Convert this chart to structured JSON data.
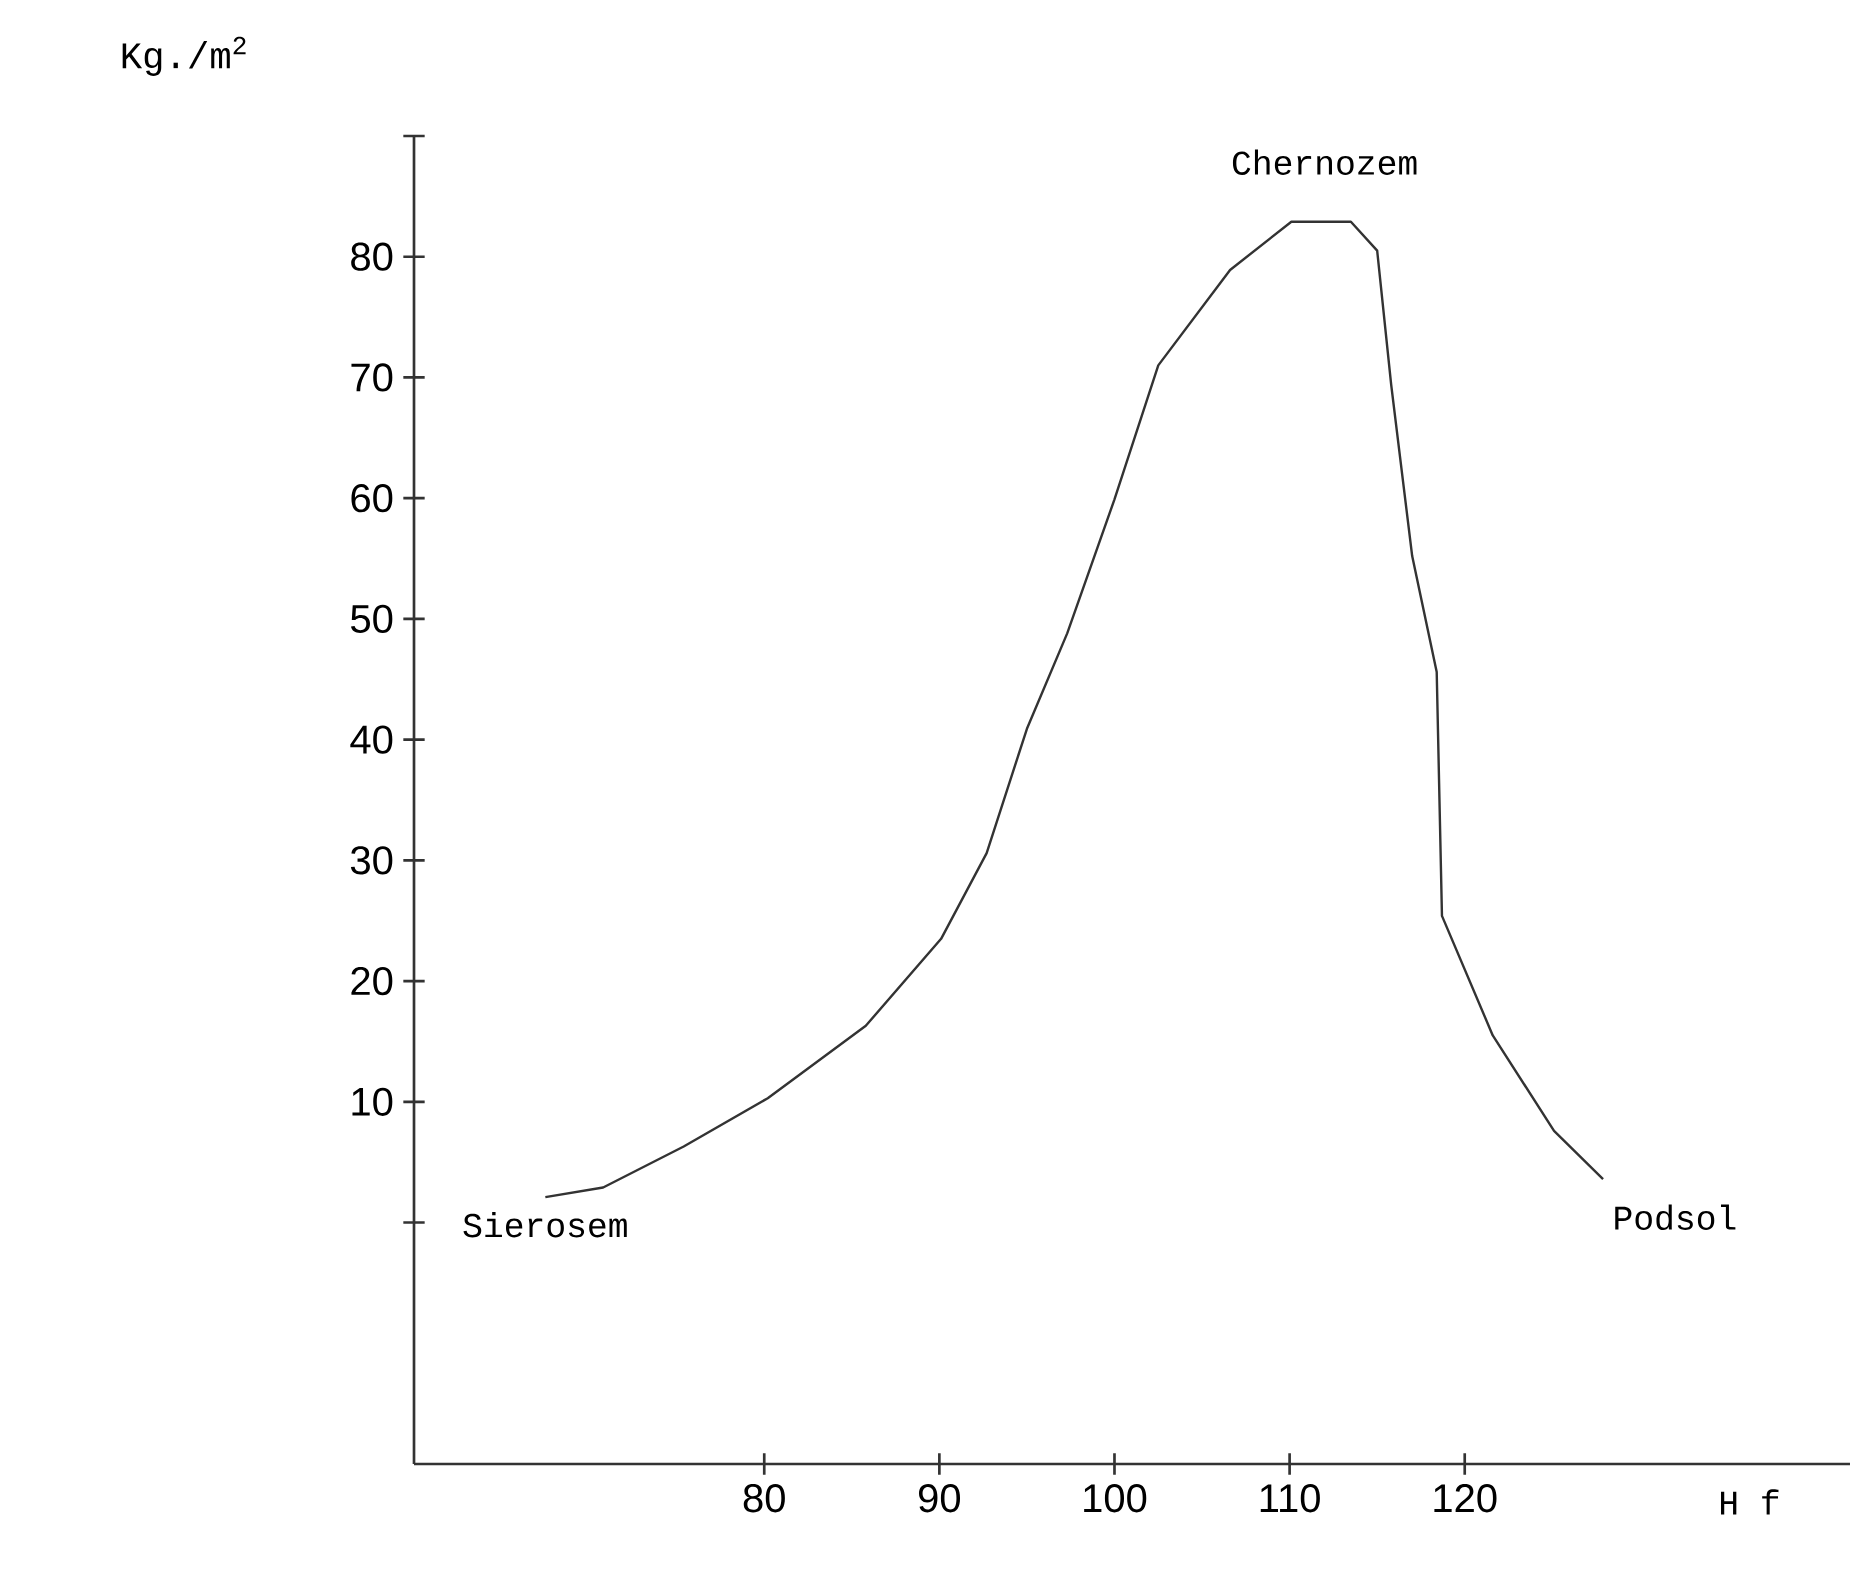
{
  "chart_data": {
    "type": "line",
    "xlabel": "H f",
    "ylabel": "Kg./m$^{2}$",
    "xlim": [
      60,
      142
    ],
    "ylim": [
      -20,
      90
    ],
    "xticks": [
      80,
      90,
      100,
      110,
      120
    ],
    "yticks": [
      {
        "value": 0,
        "label": null
      },
      10,
      20,
      30,
      40,
      50,
      60,
      70,
      80,
      {
        "value": 90,
        "label": null
      }
    ],
    "x": [
      67.5,
      70.8,
      75.4,
      80.2,
      85.8,
      90.1,
      92.7,
      95.0,
      97.3,
      100,
      102.5,
      106.6,
      110.1,
      113.5,
      115,
      115.8,
      117,
      118.4,
      118.7,
      121.6,
      125.1,
      127.9
    ],
    "series": [
      {
        "color": "#333333",
        "values": [
          2.1,
          2.9,
          6.3,
          10.3,
          16.3,
          23.5,
          30.6,
          40.9,
          48.8,
          59.9,
          71,
          78.9,
          82.9,
          82.9,
          80.5,
          69.4,
          55.2,
          45.6,
          25.4,
          15.5,
          7.6,
          3.6
        ]
      }
    ],
    "annotations": [
      {
        "text": "Chernozem",
        "x": 112,
        "y": 82.9
      },
      {
        "text": "Sierosem",
        "x": 67.5,
        "y": 2.1
      },
      {
        "text": "Podsol",
        "x": 127.9,
        "y": 3.6
      }
    ],
    "grid": false,
    "marker": "none",
    "line_style": "solid"
  }
}
